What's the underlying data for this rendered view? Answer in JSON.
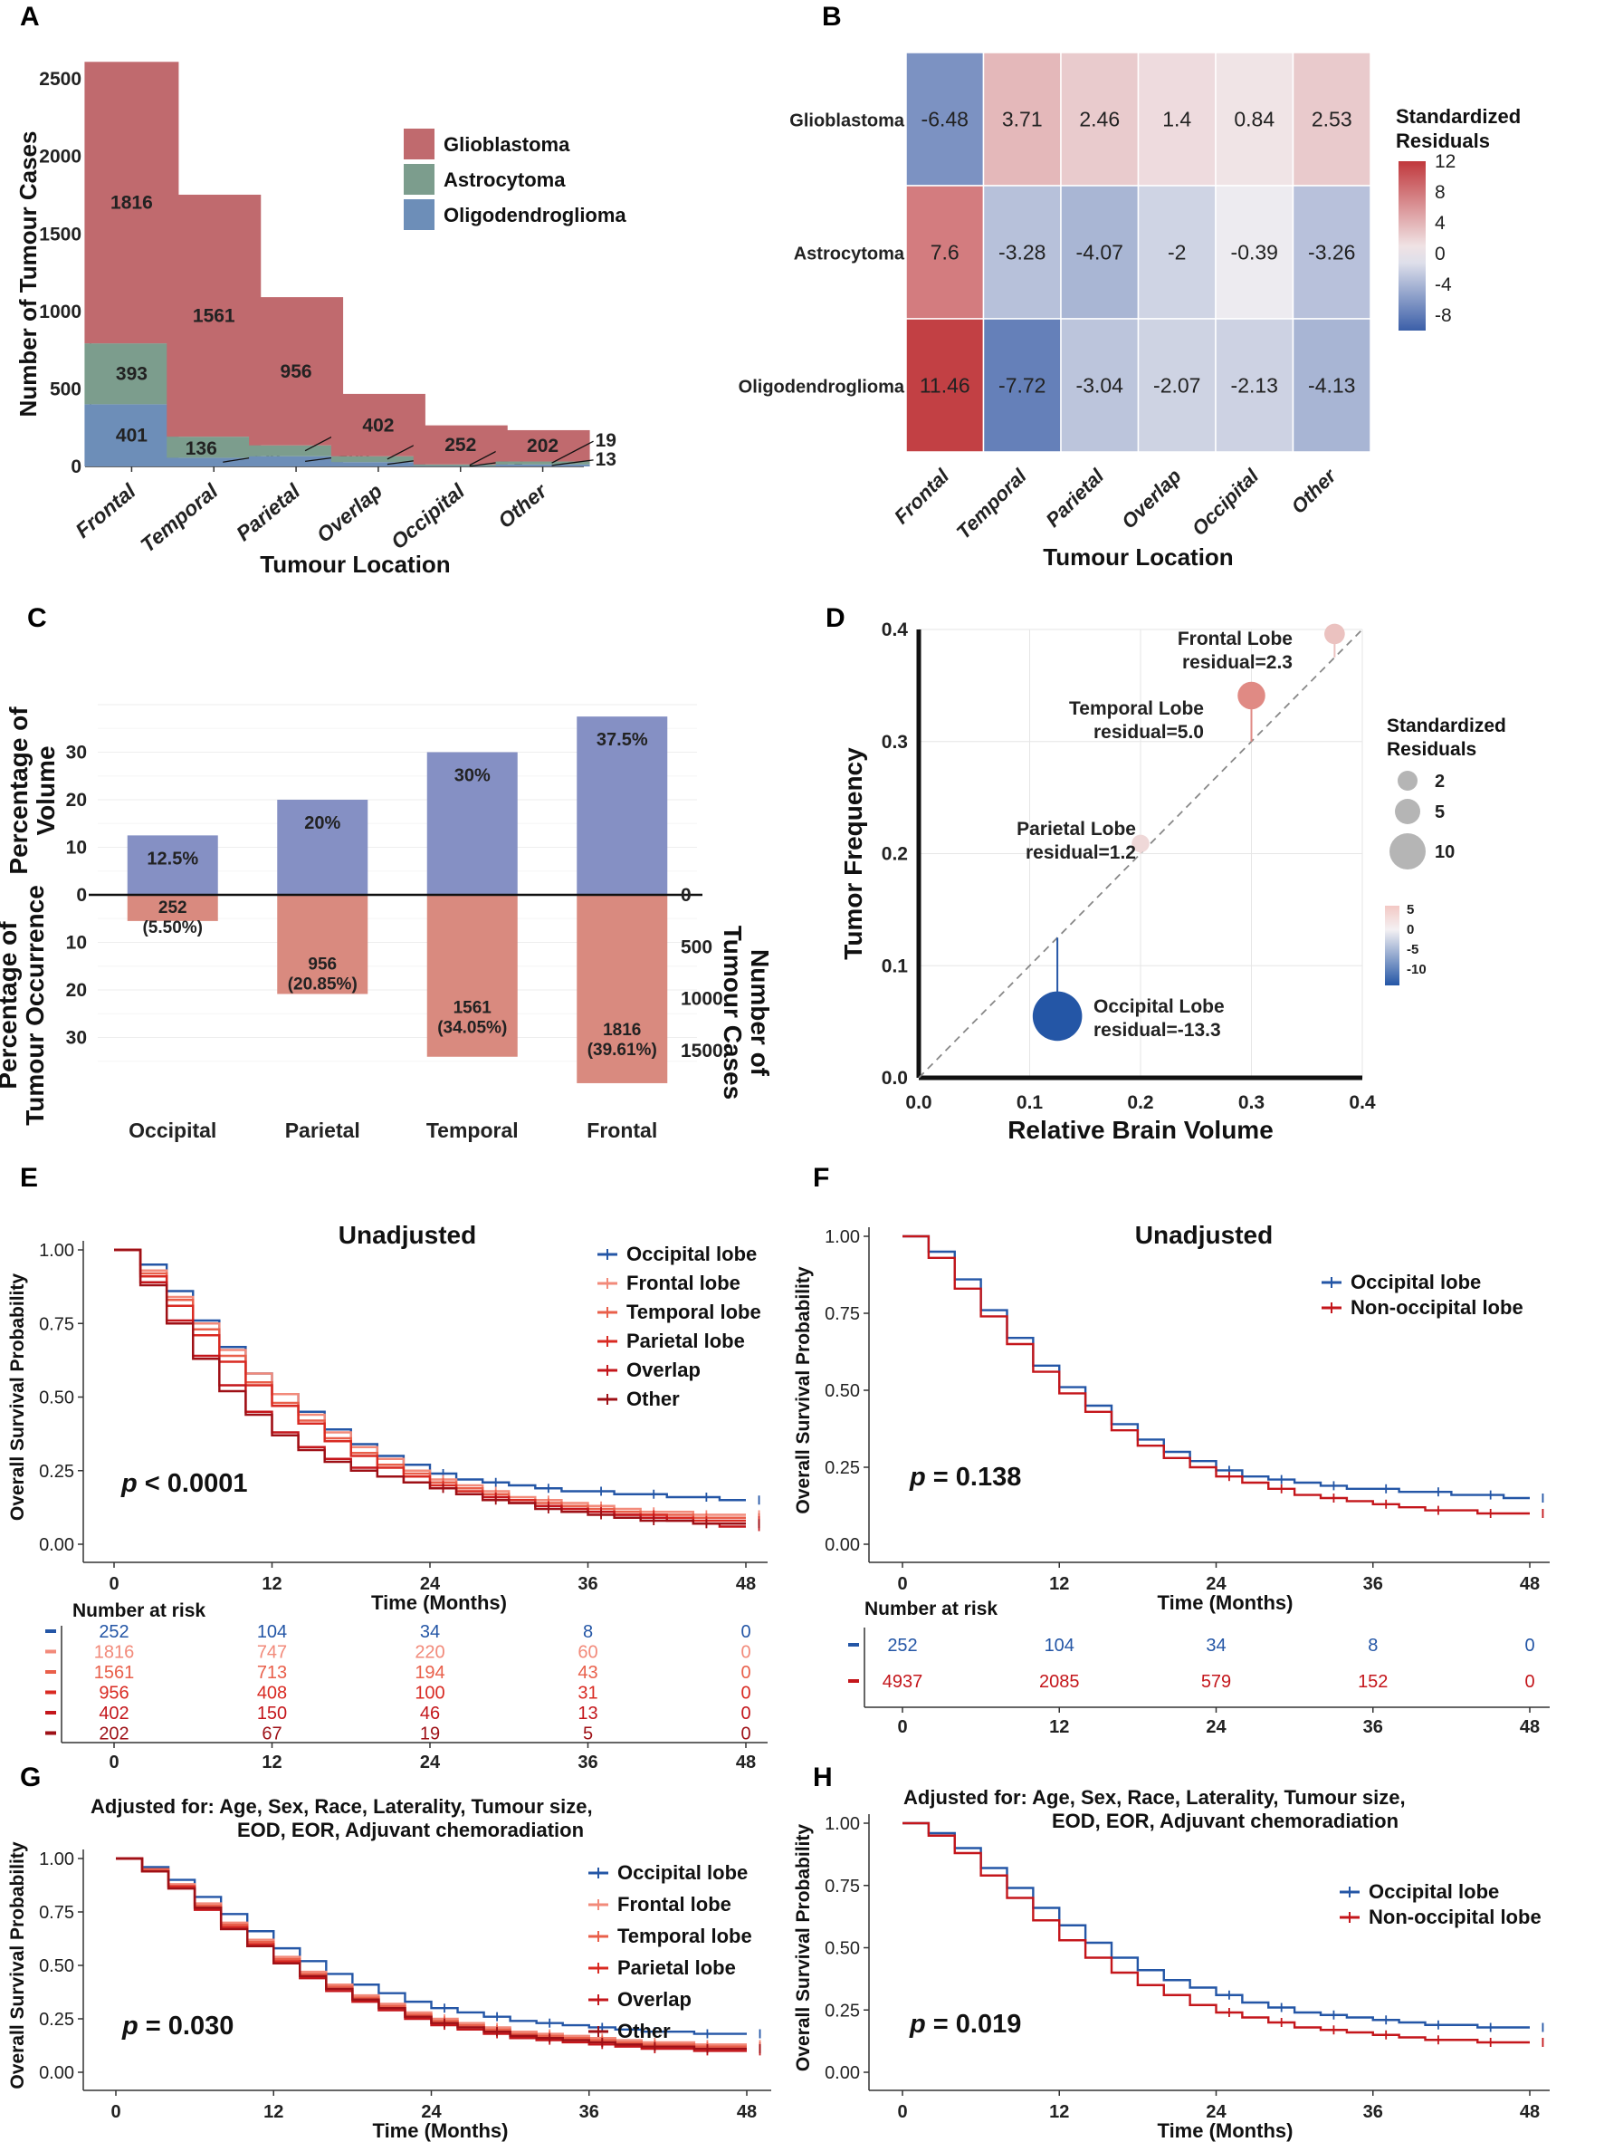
{
  "figure": {
    "panel_labels": [
      "A",
      "B",
      "C",
      "D",
      "E",
      "F",
      "G",
      "H"
    ],
    "colors": {
      "glioblastoma": "#c06a6e",
      "astrocytoma": "#7c9d8d",
      "oligodendroglioma": "#6d8eb8",
      "volume_bar": "#8590c4",
      "occurrence_bar": "#d98a7f",
      "occipital": "#2456a6",
      "frontal": "#f28a7a",
      "temporal": "#e95f4a",
      "parietal": "#d92a22",
      "overlap": "#c4161b",
      "other": "#9e1016",
      "non_occipital": "#c4161b"
    }
  },
  "chart_data": [
    {
      "panel": "A",
      "type": "bar",
      "stacked": true,
      "categories": [
        "Frontal",
        "Temporal",
        "Parietal",
        "Overlap",
        "Occipital",
        "Other"
      ],
      "series": [
        {
          "name": "Oligodendroglioma",
          "values": [
            401,
            56,
            66,
            28,
            3,
            13
          ]
        },
        {
          "name": "Astrocytoma",
          "values": [
            393,
            136,
            70,
            38,
            10,
            19
          ]
        },
        {
          "name": "Glioblastoma",
          "values": [
            1816,
            1561,
            956,
            402,
            252,
            202
          ]
        }
      ],
      "xlabel": "Tumour Location",
      "ylabel": "Number of Tumour Cases",
      "ylim": [
        0,
        2600
      ],
      "yticks": [
        0,
        500,
        1000,
        1500,
        2000,
        2500
      ],
      "legend": [
        "Glioblastoma",
        "Astrocytoma",
        "Oligodendroglioma"
      ]
    },
    {
      "panel": "B",
      "type": "heatmap",
      "rows": [
        "Glioblastoma",
        "Astrocytoma",
        "Oligodendroglioma"
      ],
      "columns": [
        "Frontal",
        "Temporal",
        "Parietal",
        "Overlap",
        "Occipital",
        "Other"
      ],
      "values": [
        [
          -6.48,
          3.71,
          2.46,
          1.4,
          0.84,
          2.53
        ],
        [
          7.6,
          -3.28,
          -4.07,
          -2,
          -0.39,
          -3.26
        ],
        [
          11.46,
          -7.72,
          -3.04,
          -2.07,
          -2.13,
          -4.13
        ]
      ],
      "labels": [
        [
          "-6.48",
          "3.71",
          "2.46",
          "1.4",
          "0.84",
          "2.53"
        ],
        [
          "7.6",
          "-3.28",
          "-4.07",
          "-2",
          "-0.39",
          "-3.26"
        ],
        [
          "11.46",
          "-7.72",
          "-3.04",
          "-2.07",
          "-2.13",
          "-4.13"
        ]
      ],
      "xlabel": "Tumour Location",
      "colorbar_title": [
        "Standardized",
        "Residuals"
      ],
      "colorbar_ticks": [
        "12",
        "8",
        "4",
        "0",
        "-4",
        "-8"
      ],
      "colorbar_tick_values": [
        12,
        8,
        4,
        0,
        -4,
        -8
      ],
      "range": [
        -10,
        12
      ]
    },
    {
      "panel": "C",
      "type": "bar",
      "categories": [
        "Occipital",
        "Parietal",
        "Temporal",
        "Frontal"
      ],
      "volume_percent": [
        12.5,
        20,
        30,
        37.5
      ],
      "volume_labels": [
        "12.5%",
        "20%",
        "30%",
        "37.5%"
      ],
      "occurrence_percent": [
        5.5,
        20.85,
        34.05,
        39.61
      ],
      "occurrence_labels": [
        [
          "252",
          "(5.50%)"
        ],
        [
          "956",
          "(20.85%)"
        ],
        [
          "1561",
          "(34.05%)"
        ],
        [
          "1816",
          "(39.61%)"
        ]
      ],
      "ylabel_top": [
        "Percentage of",
        "Volume"
      ],
      "ylabel_bottom": [
        "Percentage of",
        "Tumour Occurrence"
      ],
      "ylabel_right": [
        "Number of",
        "Tumour Cases"
      ],
      "left_ticks": [
        "30",
        "20",
        "10",
        "0",
        "10",
        "20",
        "30"
      ],
      "left_tick_values": [
        30,
        20,
        10,
        0,
        -10,
        -20,
        -30
      ],
      "right_ticks": [
        "0",
        "500",
        "1000",
        "1500"
      ],
      "right_tick_values": [
        0,
        -500,
        -1000,
        -1500
      ]
    },
    {
      "panel": "D",
      "type": "scatter",
      "points": [
        {
          "name": "Frontal Lobe",
          "label": "residual=2.3",
          "x": 0.375,
          "y": 0.396,
          "residual": 2.3
        },
        {
          "name": "Temporal Lobe",
          "label": "residual=5.0",
          "x": 0.3,
          "y": 0.341,
          "residual": 5.0
        },
        {
          "name": "Parietal Lobe",
          "label": "residual=1.2",
          "x": 0.2,
          "y": 0.209,
          "residual": 1.2
        },
        {
          "name": "Occipital Lobe",
          "label": "residual=-13.3",
          "x": 0.125,
          "y": 0.055,
          "residual": -13.3
        }
      ],
      "xlabel": "Relative Brain Volume",
      "ylabel": "Tumor Frequency",
      "xlim": [
        0,
        0.4
      ],
      "ylim": [
        0,
        0.4
      ],
      "xticks": [
        "0.0",
        "0.1",
        "0.2",
        "0.3",
        "0.4"
      ],
      "yticks": [
        "0.0",
        "0.1",
        "0.2",
        "0.3",
        "0.4"
      ],
      "size_legend_title": [
        "Standardized",
        "Residuals"
      ],
      "size_legend": [
        "2",
        "5",
        "10"
      ],
      "color_legend": [
        "5",
        "0",
        "-5",
        "-10"
      ]
    },
    {
      "panel": "E",
      "type": "line",
      "title": "Unadjusted",
      "xlabel": "Time (Months)",
      "ylabel": "Overall Survival Probability",
      "xticks": [
        "0",
        "12",
        "24",
        "36",
        "48"
      ],
      "yticks": [
        "0.00",
        "0.25",
        "0.50",
        "0.75",
        "1.00"
      ],
      "x": [
        0,
        2,
        4,
        6,
        8,
        10,
        12,
        14,
        16,
        18,
        20,
        22,
        24,
        26,
        28,
        30,
        32,
        34,
        36,
        38,
        40,
        42,
        44,
        46,
        48
      ],
      "series": [
        {
          "name": "Occipital lobe",
          "color_key": "occipital",
          "values": [
            1.0,
            0.95,
            0.86,
            0.76,
            0.67,
            0.58,
            0.51,
            0.45,
            0.39,
            0.34,
            0.3,
            0.27,
            0.24,
            0.22,
            0.21,
            0.2,
            0.19,
            0.18,
            0.18,
            0.17,
            0.17,
            0.16,
            0.16,
            0.15,
            0.15
          ]
        },
        {
          "name": "Frontal lobe",
          "color_key": "frontal",
          "values": [
            1.0,
            0.93,
            0.84,
            0.75,
            0.66,
            0.58,
            0.51,
            0.44,
            0.38,
            0.33,
            0.29,
            0.25,
            0.22,
            0.2,
            0.18,
            0.16,
            0.15,
            0.14,
            0.13,
            0.12,
            0.11,
            0.11,
            0.1,
            0.1,
            0.1
          ]
        },
        {
          "name": "Temporal lobe",
          "color_key": "temporal",
          "values": [
            1.0,
            0.92,
            0.83,
            0.73,
            0.64,
            0.55,
            0.48,
            0.42,
            0.36,
            0.31,
            0.27,
            0.24,
            0.21,
            0.19,
            0.17,
            0.15,
            0.14,
            0.13,
            0.12,
            0.11,
            0.1,
            0.1,
            0.09,
            0.09,
            0.09
          ]
        },
        {
          "name": "Parietal lobe",
          "color_key": "parietal",
          "values": [
            1.0,
            0.91,
            0.81,
            0.71,
            0.62,
            0.54,
            0.47,
            0.41,
            0.35,
            0.3,
            0.26,
            0.23,
            0.2,
            0.18,
            0.16,
            0.15,
            0.13,
            0.12,
            0.11,
            0.1,
            0.1,
            0.09,
            0.08,
            0.08,
            0.08
          ]
        },
        {
          "name": "Overlap",
          "color_key": "overlap",
          "values": [
            1.0,
            0.89,
            0.76,
            0.64,
            0.54,
            0.45,
            0.38,
            0.33,
            0.29,
            0.26,
            0.23,
            0.21,
            0.19,
            0.17,
            0.16,
            0.14,
            0.13,
            0.12,
            0.11,
            0.1,
            0.09,
            0.08,
            0.07,
            0.06,
            0.06
          ]
        },
        {
          "name": "Other",
          "color_key": "other",
          "values": [
            1.0,
            0.88,
            0.75,
            0.63,
            0.52,
            0.44,
            0.37,
            0.32,
            0.28,
            0.25,
            0.23,
            0.21,
            0.19,
            0.17,
            0.15,
            0.14,
            0.12,
            0.11,
            0.1,
            0.09,
            0.08,
            0.08,
            0.07,
            0.07,
            0.07
          ]
        }
      ],
      "p_label": "p",
      "p_value": " < 0.0001",
      "risk_title": "Number at risk",
      "risk_ticks": [
        "0",
        "12",
        "24",
        "36",
        "48"
      ],
      "risk_table": [
        [
          "252",
          "104",
          "34",
          "8",
          "0"
        ],
        [
          "1816",
          "747",
          "220",
          "60",
          "0"
        ],
        [
          "1561",
          "713",
          "194",
          "43",
          "0"
        ],
        [
          "956",
          "408",
          "100",
          "31",
          "0"
        ],
        [
          "402",
          "150",
          "46",
          "13",
          "0"
        ],
        [
          "202",
          "67",
          "19",
          "5",
          "0"
        ]
      ]
    },
    {
      "panel": "F",
      "type": "line",
      "title": "Unadjusted",
      "xlabel": "Time (Months)",
      "ylabel": "Overall Survival Probability",
      "xticks": [
        "0",
        "12",
        "24",
        "36",
        "48"
      ],
      "yticks": [
        "0.00",
        "0.25",
        "0.50",
        "0.75",
        "1.00"
      ],
      "x": [
        0,
        2,
        4,
        6,
        8,
        10,
        12,
        14,
        16,
        18,
        20,
        22,
        24,
        26,
        28,
        30,
        32,
        34,
        36,
        38,
        40,
        42,
        44,
        46,
        48
      ],
      "series": [
        {
          "name": "Occipital lobe",
          "color_key": "occipital",
          "values": [
            1.0,
            0.95,
            0.86,
            0.76,
            0.67,
            0.58,
            0.51,
            0.45,
            0.39,
            0.34,
            0.3,
            0.27,
            0.24,
            0.22,
            0.21,
            0.2,
            0.19,
            0.18,
            0.18,
            0.17,
            0.17,
            0.16,
            0.16,
            0.15,
            0.15
          ]
        },
        {
          "name": "Non-occipital lobe",
          "color_key": "non_occipital",
          "values": [
            1.0,
            0.93,
            0.83,
            0.74,
            0.65,
            0.56,
            0.49,
            0.43,
            0.37,
            0.32,
            0.28,
            0.25,
            0.22,
            0.2,
            0.18,
            0.16,
            0.15,
            0.14,
            0.13,
            0.12,
            0.11,
            0.11,
            0.1,
            0.1,
            0.1
          ]
        }
      ],
      "p_label": "p",
      "p_value": " = 0.138",
      "risk_title": "Number at risk",
      "risk_ticks": [
        "0",
        "12",
        "24",
        "36",
        "48"
      ],
      "risk_table": [
        [
          "252",
          "104",
          "34",
          "8",
          "0"
        ],
        [
          "4937",
          "2085",
          "579",
          "152",
          "0"
        ]
      ]
    },
    {
      "panel": "G",
      "type": "line",
      "subtitle": [
        "Adjusted for:  Age, Sex, Race, Laterality, Tumour size,",
        "EOD, EOR, Adjuvant chemoradiation"
      ],
      "xlabel": "Time (Months)",
      "ylabel": "Overall Survival Probability",
      "xticks": [
        "0",
        "12",
        "24",
        "36",
        "48"
      ],
      "yticks": [
        "0.00",
        "0.25",
        "0.50",
        "0.75",
        "1.00"
      ],
      "x": [
        0,
        2,
        4,
        6,
        8,
        10,
        12,
        14,
        16,
        18,
        20,
        22,
        24,
        26,
        28,
        30,
        32,
        34,
        36,
        38,
        40,
        42,
        44,
        46,
        48
      ],
      "series": [
        {
          "name": "Occipital lobe",
          "color_key": "occipital",
          "values": [
            1.0,
            0.96,
            0.9,
            0.82,
            0.74,
            0.66,
            0.58,
            0.52,
            0.46,
            0.41,
            0.37,
            0.33,
            0.3,
            0.28,
            0.26,
            0.24,
            0.23,
            0.22,
            0.21,
            0.2,
            0.19,
            0.19,
            0.18,
            0.18,
            0.18
          ]
        },
        {
          "name": "Frontal lobe",
          "color_key": "frontal",
          "values": [
            1.0,
            0.95,
            0.88,
            0.79,
            0.7,
            0.62,
            0.54,
            0.47,
            0.41,
            0.36,
            0.32,
            0.28,
            0.25,
            0.23,
            0.21,
            0.19,
            0.18,
            0.17,
            0.16,
            0.15,
            0.14,
            0.14,
            0.13,
            0.13,
            0.13
          ]
        },
        {
          "name": "Temporal lobe",
          "color_key": "temporal",
          "values": [
            1.0,
            0.95,
            0.87,
            0.78,
            0.69,
            0.61,
            0.53,
            0.46,
            0.4,
            0.35,
            0.31,
            0.27,
            0.24,
            0.22,
            0.2,
            0.18,
            0.17,
            0.16,
            0.15,
            0.14,
            0.13,
            0.13,
            0.12,
            0.12,
            0.12
          ]
        },
        {
          "name": "Parietal lobe",
          "color_key": "parietal",
          "values": [
            1.0,
            0.94,
            0.87,
            0.77,
            0.68,
            0.6,
            0.52,
            0.45,
            0.39,
            0.34,
            0.3,
            0.26,
            0.23,
            0.21,
            0.19,
            0.17,
            0.16,
            0.15,
            0.14,
            0.13,
            0.12,
            0.12,
            0.11,
            0.11,
            0.11
          ]
        },
        {
          "name": "Overlap",
          "color_key": "overlap",
          "values": [
            1.0,
            0.94,
            0.86,
            0.76,
            0.67,
            0.59,
            0.51,
            0.44,
            0.38,
            0.33,
            0.29,
            0.25,
            0.22,
            0.2,
            0.18,
            0.16,
            0.15,
            0.14,
            0.13,
            0.12,
            0.11,
            0.11,
            0.1,
            0.1,
            0.1
          ]
        },
        {
          "name": "Other",
          "color_key": "other",
          "values": [
            1.0,
            0.94,
            0.86,
            0.77,
            0.67,
            0.59,
            0.51,
            0.45,
            0.39,
            0.34,
            0.3,
            0.26,
            0.23,
            0.21,
            0.19,
            0.17,
            0.16,
            0.15,
            0.14,
            0.13,
            0.12,
            0.12,
            0.11,
            0.11,
            0.11
          ]
        }
      ],
      "p_label": "p",
      "p_value": " = 0.030"
    },
    {
      "panel": "H",
      "type": "line",
      "subtitle": [
        "Adjusted for:  Age, Sex, Race, Laterality, Tumour size,",
        "EOD, EOR, Adjuvant chemoradiation"
      ],
      "xlabel": "Time (Months)",
      "ylabel": "Overall Survival Probability",
      "xticks": [
        "0",
        "12",
        "24",
        "36",
        "48"
      ],
      "yticks": [
        "0.00",
        "0.25",
        "0.50",
        "0.75",
        "1.00"
      ],
      "x": [
        0,
        2,
        4,
        6,
        8,
        10,
        12,
        14,
        16,
        18,
        20,
        22,
        24,
        26,
        28,
        30,
        32,
        34,
        36,
        38,
        40,
        42,
        44,
        46,
        48
      ],
      "series": [
        {
          "name": "Occipital lobe",
          "color_key": "occipital",
          "values": [
            1.0,
            0.96,
            0.9,
            0.82,
            0.74,
            0.66,
            0.59,
            0.52,
            0.46,
            0.41,
            0.37,
            0.34,
            0.31,
            0.28,
            0.26,
            0.24,
            0.23,
            0.22,
            0.21,
            0.2,
            0.19,
            0.19,
            0.18,
            0.18,
            0.18
          ]
        },
        {
          "name": "Non-occipital lobe",
          "color_key": "non_occipital",
          "values": [
            1.0,
            0.95,
            0.88,
            0.79,
            0.7,
            0.61,
            0.53,
            0.46,
            0.4,
            0.35,
            0.31,
            0.27,
            0.24,
            0.22,
            0.2,
            0.18,
            0.17,
            0.16,
            0.15,
            0.14,
            0.13,
            0.13,
            0.12,
            0.12,
            0.12
          ]
        }
      ],
      "p_label": "p",
      "p_value": " = 0.019"
    }
  ]
}
